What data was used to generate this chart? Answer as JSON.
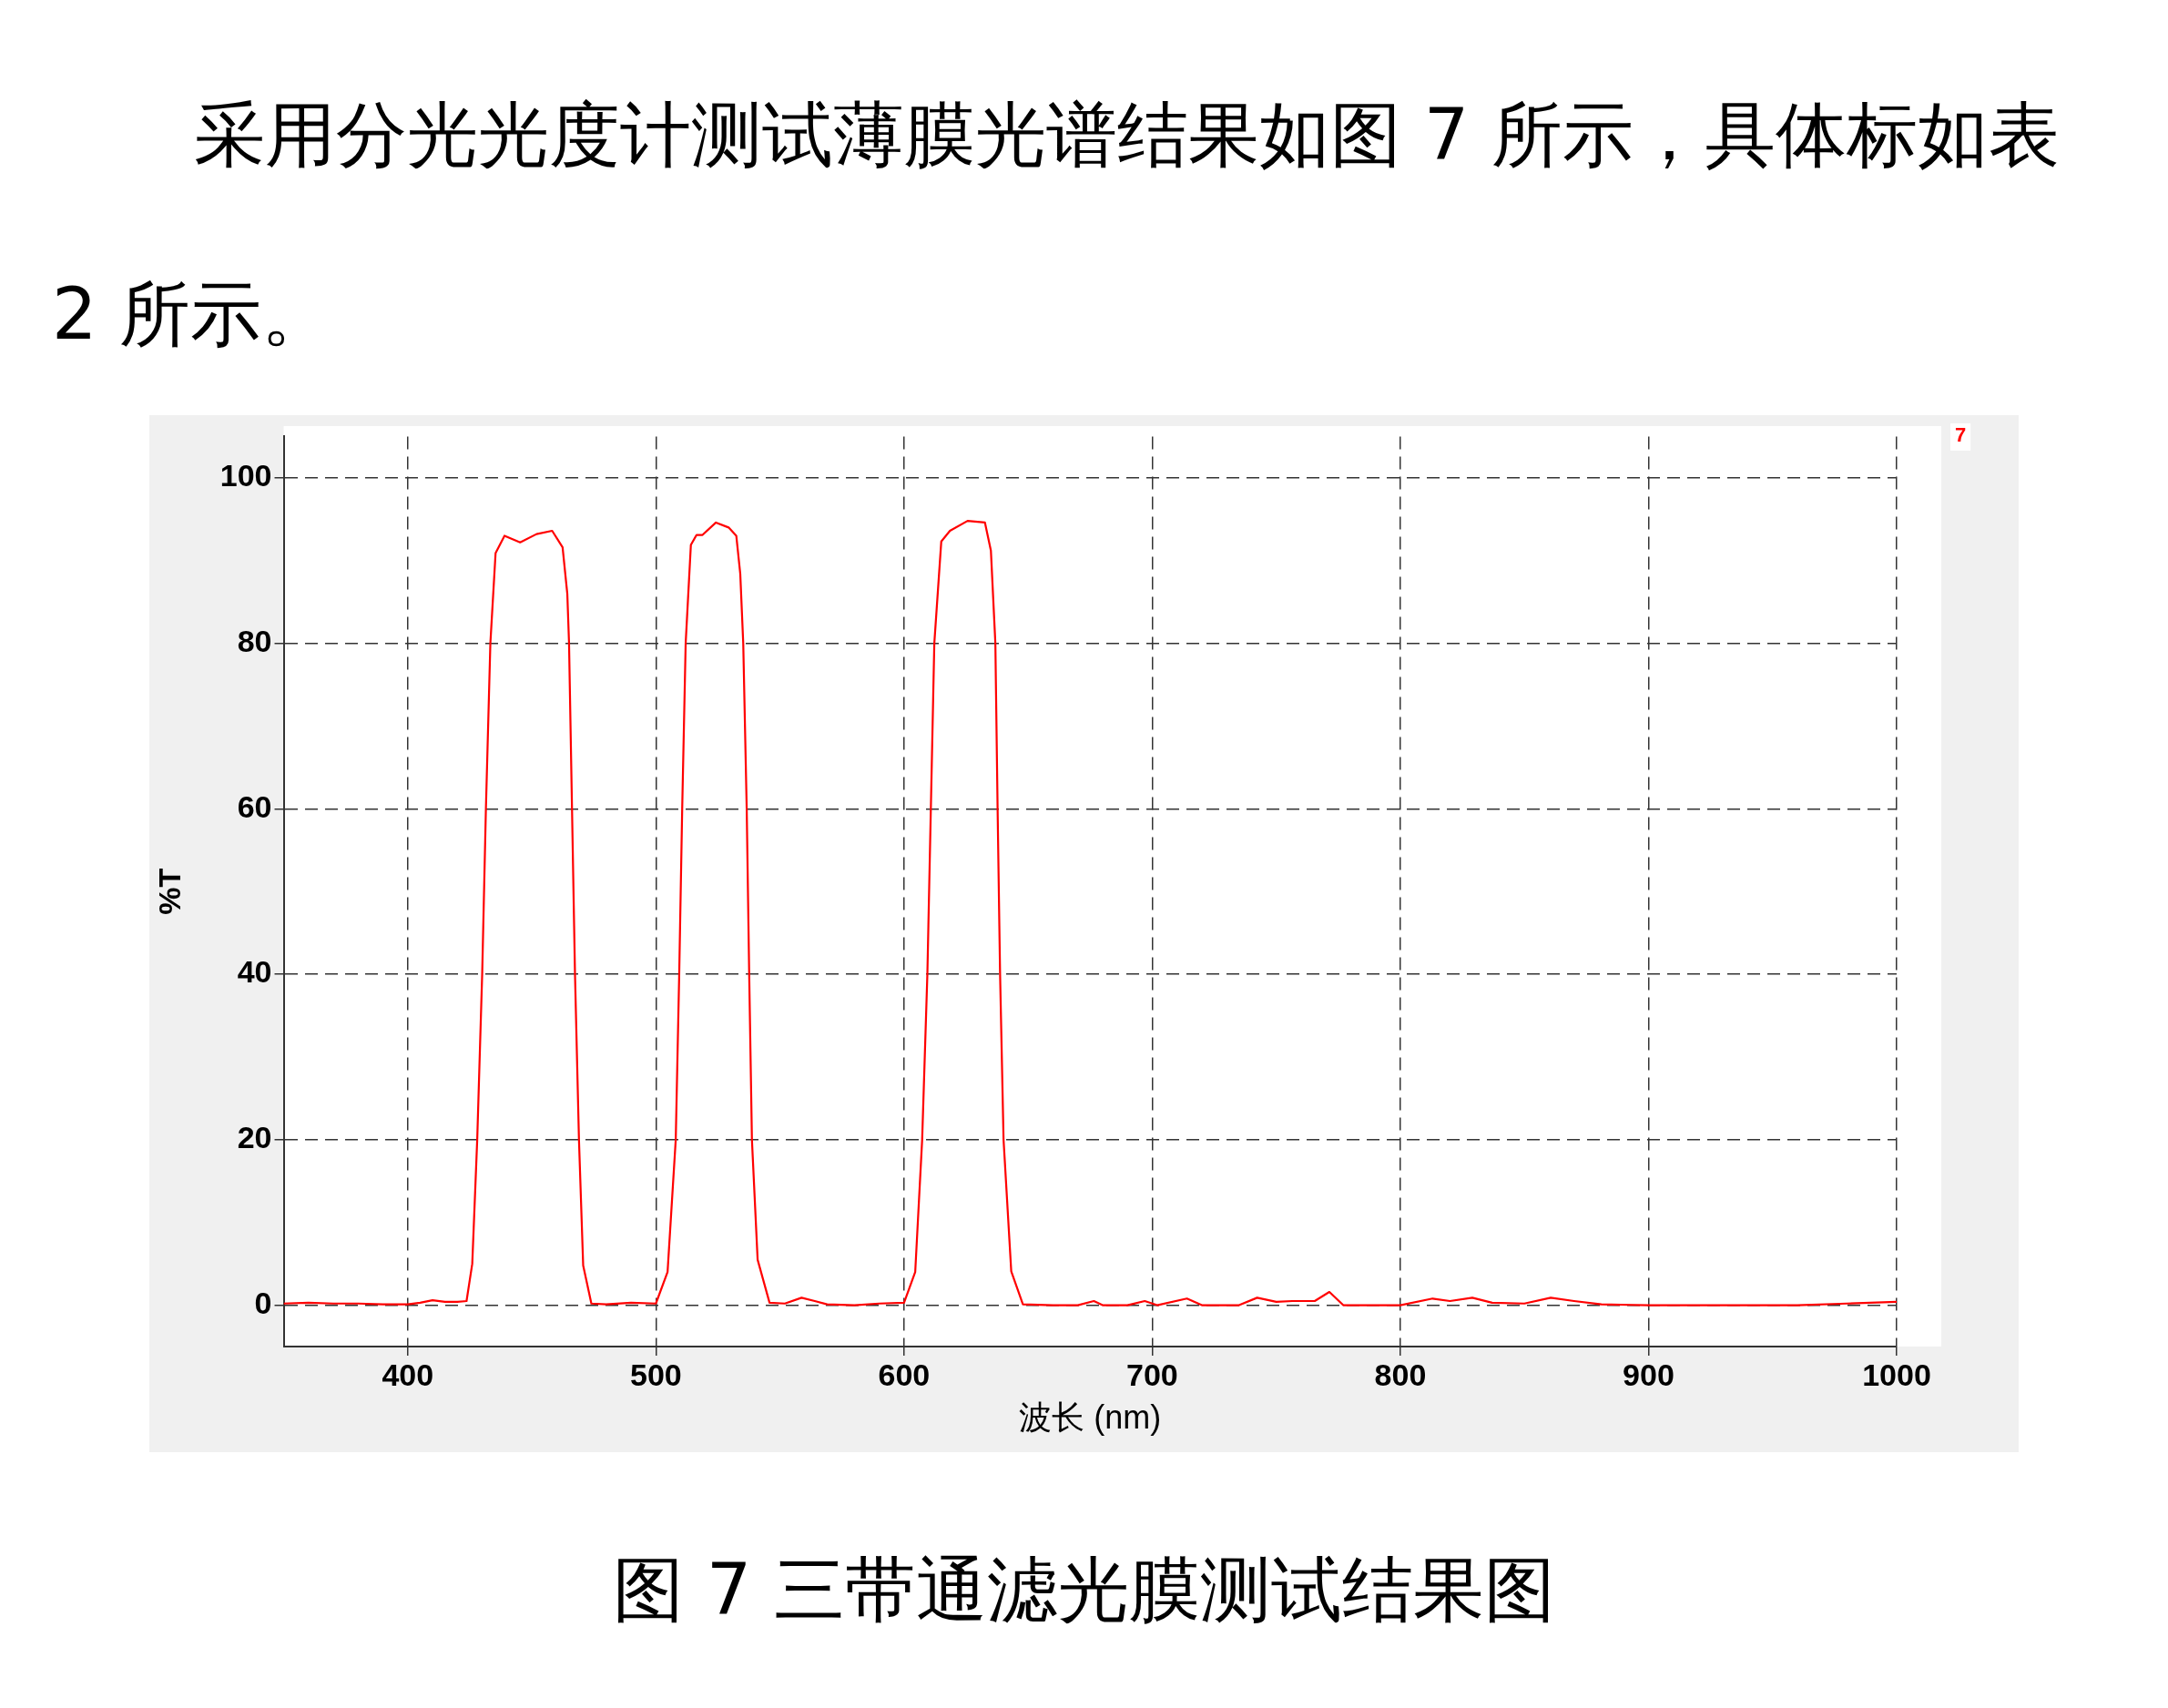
{
  "chart_data": {
    "type": "line",
    "title": "图 7 三带通滤光膜测试结果图",
    "annotations": [
      "采用分光光度计测试薄膜光谱结果如图 7 所示，具体标如表 2 所示。"
    ],
    "xlabel": "波长 (nm)",
    "ylabel": "%T",
    "xlim": [
      350,
      1000
    ],
    "xticks": [
      400,
      500,
      600,
      700,
      800,
      900,
      1000
    ],
    "ylim": [
      -5,
      105
    ],
    "yticks": [
      0,
      20,
      40,
      60,
      80,
      100
    ],
    "grid": true,
    "legend": "top right",
    "marker": "none",
    "line_style": "solid",
    "series": [
      {
        "name": "7",
        "color": "#ff0000",
        "x": [
          350,
          360,
          370,
          380,
          390,
          400,
          405,
          410,
          415,
          420,
          423.7,
          426,
          428,
          430,
          431.5,
          433.3,
          435.4,
          439,
          445.3,
          451.9,
          458.2,
          462.4,
          464.3,
          465,
          466.2,
          467.4,
          469,
          470.7,
          474,
          480,
          490,
          500,
          504.7,
          508,
          509.4,
          510.6,
          512,
          514.1,
          516.4,
          518.8,
          524.2,
          529.3,
          532.4,
          534,
          535.2,
          536.6,
          537.6,
          538.7,
          541,
          545.8,
          552,
          558.7,
          564,
          569,
          580,
          590,
          600,
          604.5,
          607.3,
          609.4,
          610.8,
          612.2,
          615,
          618.5,
          625.6,
          632.6,
          635,
          636.8,
          637.7,
          638.7,
          640.1,
          643.2,
          647.9,
          660,
          670,
          676.5,
          680,
          690,
          697,
          702,
          714,
          720,
          735,
          742.3,
          750,
          756.5,
          765.5,
          771.4,
          777,
          800,
          813,
          820,
          829,
          837,
          850,
          860.6,
          870,
          881,
          900,
          960,
          980,
          1000
        ],
        "values": [
          0.2,
          0.3,
          0.2,
          0.2,
          0.1,
          0.1,
          0.3,
          0.6,
          0.4,
          0.4,
          0.5,
          5,
          20,
          40,
          60,
          80,
          90.9,
          93,
          92.2,
          93.2,
          93.6,
          91.6,
          86,
          80,
          60,
          40,
          20,
          4.8,
          0.2,
          0.1,
          0.3,
          0.2,
          4,
          20,
          40,
          60,
          80,
          91.9,
          93.1,
          93.1,
          94.6,
          94,
          93,
          88.4,
          80,
          60,
          40,
          20,
          5.5,
          0.3,
          0.2,
          0.9,
          0.5,
          0.1,
          0,
          0.2,
          0.3,
          4,
          20,
          40,
          60,
          80,
          92.3,
          93.6,
          94.8,
          94.6,
          91.2,
          80,
          60,
          40,
          20,
          4.1,
          0.1,
          0,
          0,
          0.5,
          0,
          0,
          0.5,
          0,
          0.8,
          0,
          0,
          0.9,
          0.4,
          0.5,
          0.5,
          1.6,
          0,
          0,
          0.8,
          0.5,
          0.9,
          0.3,
          0.2,
          0.9,
          0.5,
          0.1,
          0,
          0,
          0.2,
          0.4
        ]
      }
    ]
  }
}
